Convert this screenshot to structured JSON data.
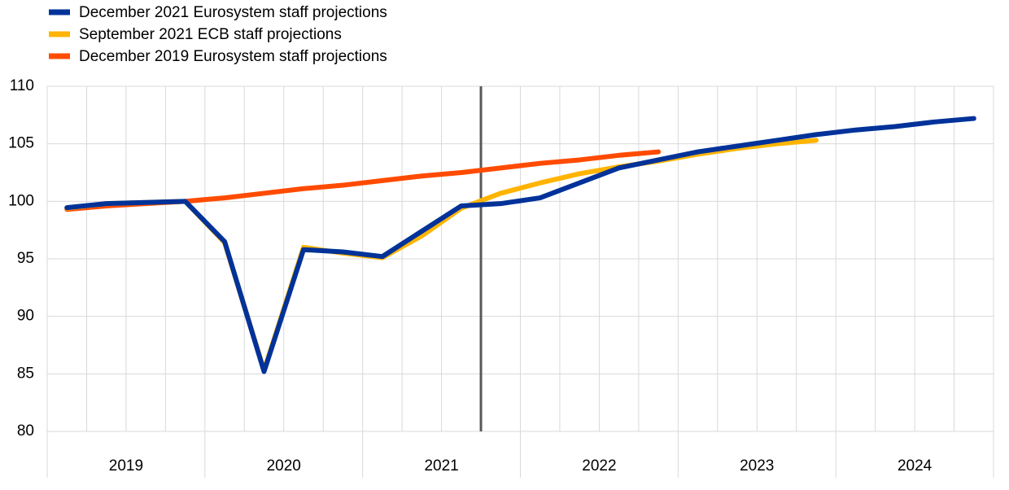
{
  "chart_data": {
    "type": "line",
    "categories": [
      null,
      null,
      null,
      null,
      null,
      null,
      null,
      null,
      null,
      null,
      null,
      null,
      null,
      null,
      null,
      null,
      null,
      null,
      null,
      null,
      null,
      null,
      null,
      null
    ],
    "x_groups": [
      "2019",
      "2020",
      "2021",
      "2022",
      "2023",
      "2024"
    ],
    "ylim": [
      80,
      110
    ],
    "yticks": [
      80,
      85,
      90,
      95,
      100,
      105,
      110
    ],
    "grid": true,
    "legend": "top-left",
    "series": [
      {
        "name": "December 2021 Eurosystem staff projections",
        "color": "#003299",
        "values": [
          99.45,
          99.8,
          99.9,
          100.0,
          96.5,
          85.2,
          95.8,
          95.6,
          95.2,
          97.4,
          99.6,
          99.8,
          100.3,
          101.6,
          102.9,
          103.6,
          104.3,
          104.8,
          105.3,
          105.8,
          106.2,
          106.5,
          106.9,
          107.2
        ]
      },
      {
        "name": "September 2021 ECB staff projections",
        "color": "#ffb400",
        "values": [
          99.4,
          99.8,
          99.9,
          100.0,
          96.4,
          85.3,
          96.0,
          95.5,
          95.1,
          97.0,
          99.4,
          100.7,
          101.6,
          102.4,
          103.0,
          103.5,
          104.1,
          104.6,
          105.0,
          105.3,
          null,
          null,
          null,
          null
        ]
      },
      {
        "name": "December 2019 Eurosystem staff projections",
        "color": "#ff4b00",
        "values": [
          99.3,
          99.6,
          99.8,
          100.0,
          100.3,
          100.7,
          101.1,
          101.4,
          101.8,
          102.2,
          102.5,
          102.9,
          103.3,
          103.6,
          104.0,
          104.3,
          null,
          null,
          null,
          null,
          null,
          null,
          null,
          null
        ]
      }
    ]
  }
}
